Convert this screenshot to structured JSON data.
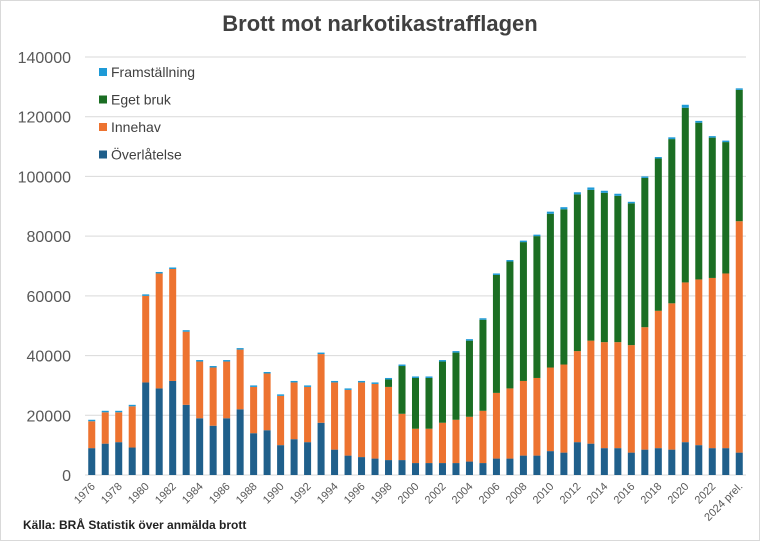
{
  "chart_data": {
    "type": "bar",
    "stacked": true,
    "title": "Brott mot narkotikastrafflagen",
    "source": "Källa: BRÅ Statistik över anmälda brott",
    "ylim": [
      0,
      140000
    ],
    "yticks": [
      0,
      20000,
      40000,
      60000,
      80000,
      100000,
      120000,
      140000
    ],
    "grid": true,
    "legend_position": "top-left",
    "categories": [
      "1976",
      "1977",
      "1978",
      "1979",
      "1980",
      "1981",
      "1982",
      "1983",
      "1984",
      "1985",
      "1986",
      "1987",
      "1988",
      "1989",
      "1990",
      "1991",
      "1992",
      "1993",
      "1994",
      "1995",
      "1996",
      "1997",
      "1998",
      "1999",
      "2000",
      "2001",
      "2002",
      "2003",
      "2004",
      "2005",
      "2006",
      "2007",
      "2008",
      "2009",
      "2010",
      "2011",
      "2012",
      "2013",
      "2014",
      "2015",
      "2016",
      "2017",
      "2018",
      "2019",
      "2020",
      "2021",
      "2022",
      "2023",
      "2024 prel."
    ],
    "series": [
      {
        "name": "Överlåtelse",
        "color": "#1f5f8b",
        "values": [
          9000,
          10500,
          11000,
          9200,
          31000,
          29000,
          31500,
          23500,
          19000,
          16500,
          19000,
          22000,
          14000,
          15000,
          10000,
          12000,
          11000,
          17500,
          8500,
          6500,
          6000,
          5500,
          5000,
          5000,
          4000,
          4000,
          4000,
          4000,
          4500,
          4000,
          5500,
          5500,
          6500,
          6500,
          8000,
          7500,
          11000,
          10500,
          9000,
          9000,
          7500,
          8500,
          9000,
          8500,
          11000,
          10000,
          9000,
          9000,
          7500
        ]
      },
      {
        "name": "Innehav",
        "color": "#ed7330",
        "values": [
          9000,
          10500,
          10000,
          13800,
          29000,
          38500,
          37500,
          24500,
          19000,
          19500,
          19000,
          20000,
          15500,
          19000,
          16500,
          19000,
          18500,
          23000,
          22500,
          22000,
          25000,
          25000,
          24500,
          15500,
          11500,
          11500,
          13500,
          14500,
          15000,
          17500,
          22000,
          23500,
          25000,
          26000,
          28000,
          29500,
          30500,
          34500,
          35500,
          35500,
          36000,
          41000,
          46000,
          49000,
          53500,
          55500,
          57000,
          58500,
          77500
        ]
      },
      {
        "name": "Eget bruk",
        "color": "#1b6e23",
        "values": [
          0,
          0,
          0,
          0,
          0,
          0,
          0,
          0,
          0,
          0,
          0,
          0,
          0,
          0,
          0,
          0,
          0,
          0,
          0,
          0,
          0,
          0,
          2500,
          16000,
          17000,
          17000,
          20500,
          22500,
          25500,
          30500,
          39500,
          42500,
          46500,
          47500,
          51500,
          52000,
          52500,
          50500,
          50000,
          49000,
          47500,
          50000,
          51000,
          55000,
          58500,
          52500,
          47000,
          44000,
          44000
        ]
      },
      {
        "name": "Framställning",
        "color": "#1e9ad6",
        "values": [
          500,
          500,
          500,
          500,
          500,
          500,
          500,
          500,
          500,
          500,
          500,
          500,
          500,
          500,
          500,
          500,
          500,
          500,
          500,
          500,
          500,
          500,
          500,
          500,
          500,
          500,
          500,
          500,
          500,
          500,
          500,
          500,
          500,
          500,
          700,
          700,
          700,
          800,
          700,
          700,
          500,
          500,
          500,
          600,
          1000,
          600,
          500,
          500,
          500
        ]
      }
    ]
  }
}
